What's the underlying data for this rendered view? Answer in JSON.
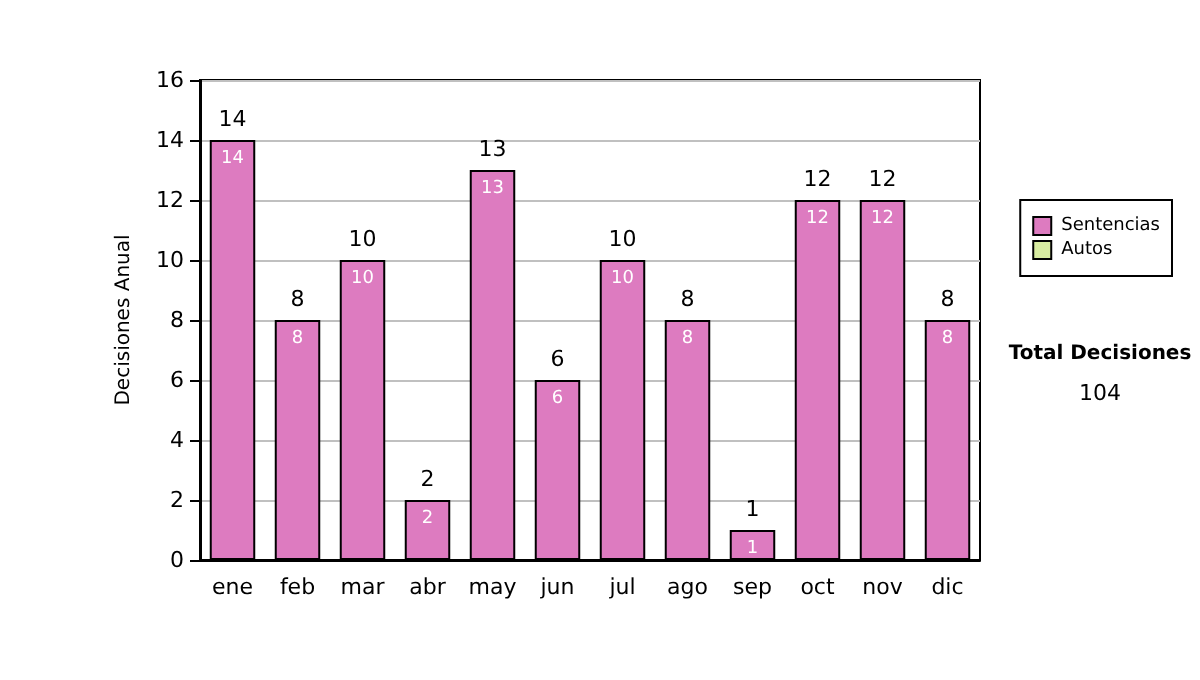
{
  "chart_data": {
    "type": "bar",
    "stacked": true,
    "ylabel": "Decisiones Anual",
    "categories": [
      "ene",
      "feb",
      "mar",
      "abr",
      "may",
      "jun",
      "jul",
      "ago",
      "sep",
      "oct",
      "nov",
      "dic"
    ],
    "series": [
      {
        "name": "Sentencias",
        "color": "#dd7bc0",
        "values": [
          14,
          8,
          10,
          2,
          13,
          6,
          10,
          8,
          1,
          12,
          12,
          8
        ],
        "value_labels": [
          "14",
          "8",
          "10",
          "2",
          "13",
          "6",
          "10",
          "8",
          "1",
          "12",
          "12",
          "8"
        ]
      },
      {
        "name": "Autos",
        "color": "#d8eca0",
        "values": [
          0,
          0,
          0,
          0,
          0,
          0,
          0,
          0,
          0,
          0,
          0,
          0
        ]
      }
    ],
    "totals": [
      "14",
      "8",
      "10",
      "2",
      "13",
      "6",
      "10",
      "8",
      "1",
      "12",
      "12",
      "8"
    ],
    "ylim": [
      0,
      16
    ],
    "yticks": [
      0,
      2,
      4,
      6,
      8,
      10,
      12,
      14,
      16
    ],
    "grid": "y",
    "legend": "right",
    "annotations": [
      "Total Decisiones",
      "104"
    ]
  }
}
